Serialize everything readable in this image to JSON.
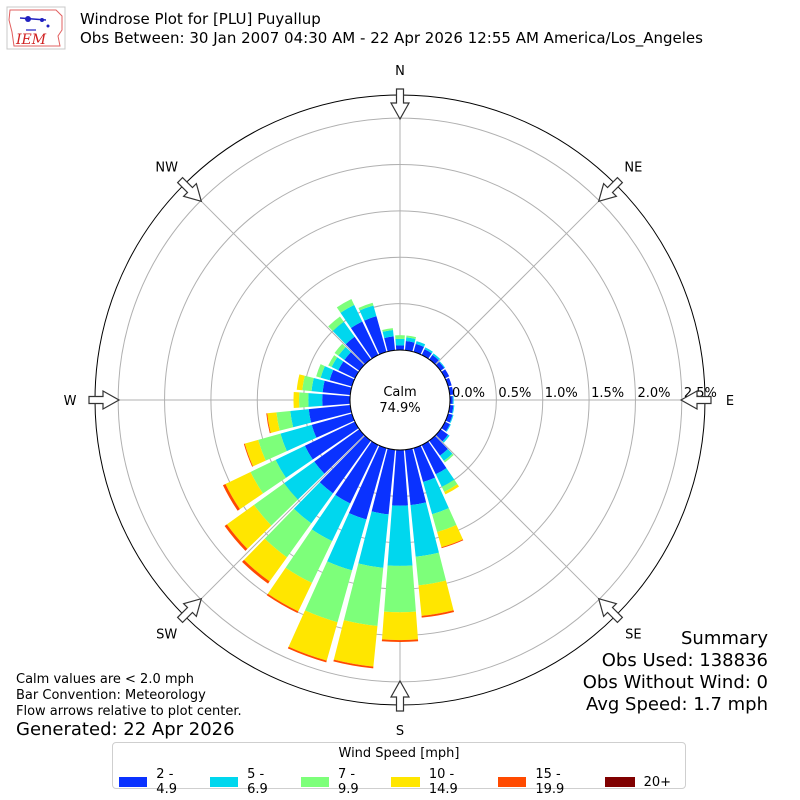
{
  "header": {
    "logo_text": "IEM",
    "title_line1": "Windrose Plot for [PLU] Puyallup",
    "title_line2": "Obs Between: 30 Jan 2007 04:30 AM - 22 Apr 2026 12:55 AM America/Los_Angeles"
  },
  "summary": {
    "title": "Summary",
    "obs_used": "Obs Used: 138836",
    "obs_without_wind": "Obs Without Wind: 0",
    "avg_speed": "Avg Speed: 1.7 mph"
  },
  "notes": {
    "line1": "Calm values are < 2.0 mph",
    "line2": "Bar Convention: Meteorology",
    "line3": "Flow arrows relative to plot center."
  },
  "generated": "Generated: 22 Apr 2026",
  "chart_data": {
    "type": "windrose",
    "calm_label": "Calm",
    "calm_value": "74.9%",
    "radial_ticks": [
      "0.0%",
      "0.5%",
      "1.0%",
      "1.5%",
      "2.0%",
      "2.5%"
    ],
    "rmax": 2.75,
    "directions": [
      "N",
      "NE",
      "E",
      "SE",
      "S",
      "SW",
      "W",
      "NW"
    ],
    "legend_title": "Wind Speed [mph]",
    "bins": [
      {
        "label": "2 - 4.9",
        "color": "#0a32ff"
      },
      {
        "label": "5 - 6.9",
        "color": "#00d7ee"
      },
      {
        "label": "7 - 9.9",
        "color": "#7dff7a"
      },
      {
        "label": "10 - 14.9",
        "color": "#ffe600"
      },
      {
        "label": "15 - 19.9",
        "color": "#ff4a00"
      },
      {
        "label": "20+",
        "color": "#800000"
      }
    ],
    "sectors": [
      {
        "dir": 0,
        "values": [
          0.05,
          0.07,
          0.04,
          0.0,
          0.0,
          0.0
        ]
      },
      {
        "dir": 10,
        "values": [
          0.1,
          0.04,
          0.02,
          0.0,
          0.0,
          0.0
        ]
      },
      {
        "dir": 20,
        "values": [
          0.09,
          0.03,
          0.0,
          0.0,
          0.0,
          0.0
        ]
      },
      {
        "dir": 30,
        "values": [
          0.07,
          0.02,
          0.0,
          0.0,
          0.0,
          0.0
        ]
      },
      {
        "dir": 40,
        "values": [
          0.06,
          0.02,
          0.0,
          0.0,
          0.0,
          0.0
        ]
      },
      {
        "dir": 50,
        "values": [
          0.05,
          0.01,
          0.0,
          0.0,
          0.0,
          0.0
        ]
      },
      {
        "dir": 60,
        "values": [
          0.05,
          0.0,
          0.0,
          0.0,
          0.0,
          0.0
        ]
      },
      {
        "dir": 70,
        "values": [
          0.04,
          0.0,
          0.0,
          0.0,
          0.0,
          0.0
        ]
      },
      {
        "dir": 80,
        "values": [
          0.04,
          0.0,
          0.0,
          0.0,
          0.0,
          0.0
        ]
      },
      {
        "dir": 90,
        "values": [
          0.03,
          0.01,
          0.0,
          0.0,
          0.0,
          0.0
        ]
      },
      {
        "dir": 100,
        "values": [
          0.04,
          0.01,
          0.0,
          0.0,
          0.0,
          0.0
        ]
      },
      {
        "dir": 110,
        "values": [
          0.05,
          0.01,
          0.0,
          0.0,
          0.0,
          0.0
        ]
      },
      {
        "dir": 120,
        "values": [
          0.06,
          0.01,
          0.0,
          0.0,
          0.0,
          0.0
        ]
      },
      {
        "dir": 130,
        "values": [
          0.1,
          0.02,
          0.0,
          0.0,
          0.0,
          0.0
        ]
      },
      {
        "dir": 140,
        "values": [
          0.2,
          0.07,
          0.02,
          0.0,
          0.0,
          0.0
        ]
      },
      {
        "dir": 150,
        "values": [
          0.35,
          0.15,
          0.06,
          0.03,
          0.0,
          0.0
        ]
      },
      {
        "dir": 160,
        "values": [
          0.38,
          0.36,
          0.2,
          0.17,
          0.01,
          0.0
        ]
      },
      {
        "dir": 170,
        "values": [
          0.6,
          0.56,
          0.31,
          0.33,
          0.02,
          0.0
        ]
      },
      {
        "dir": 180,
        "values": [
          0.6,
          0.65,
          0.5,
          0.3,
          0.02,
          0.0
        ]
      },
      {
        "dir": 190,
        "values": [
          0.7,
          0.58,
          0.63,
          0.44,
          0.02,
          0.0
        ]
      },
      {
        "dir": 200,
        "values": [
          0.8,
          0.57,
          0.58,
          0.43,
          0.02,
          0.0
        ]
      },
      {
        "dir": 210,
        "values": [
          0.7,
          0.45,
          0.5,
          0.34,
          0.02,
          0.0
        ]
      },
      {
        "dir": 220,
        "values": [
          0.7,
          0.4,
          0.45,
          0.32,
          0.03,
          0.0
        ]
      },
      {
        "dir": 230,
        "values": [
          0.6,
          0.4,
          0.4,
          0.36,
          0.03,
          0.0
        ]
      },
      {
        "dir": 240,
        "values": [
          0.6,
          0.35,
          0.3,
          0.3,
          0.03,
          0.0
        ]
      },
      {
        "dir": 250,
        "values": [
          0.45,
          0.35,
          0.25,
          0.15,
          0.01,
          0.0
        ]
      },
      {
        "dir": 260,
        "values": [
          0.45,
          0.2,
          0.15,
          0.1,
          0.01,
          0.0
        ]
      },
      {
        "dir": 270,
        "values": [
          0.3,
          0.15,
          0.1,
          0.06,
          0.0,
          0.0
        ]
      },
      {
        "dir": 280,
        "values": [
          0.3,
          0.12,
          0.1,
          0.06,
          0.0,
          0.0
        ]
      },
      {
        "dir": 290,
        "values": [
          0.25,
          0.1,
          0.05,
          0.0,
          0.0,
          0.0
        ]
      },
      {
        "dir": 300,
        "values": [
          0.2,
          0.08,
          0.04,
          0.0,
          0.0,
          0.0
        ]
      },
      {
        "dir": 310,
        "values": [
          0.2,
          0.08,
          0.05,
          0.0,
          0.0,
          0.0
        ]
      },
      {
        "dir": 320,
        "values": [
          0.3,
          0.2,
          0.07,
          0.0,
          0.0,
          0.0
        ]
      },
      {
        "dir": 330,
        "values": [
          0.4,
          0.2,
          0.07,
          0.0,
          0.0,
          0.0
        ]
      },
      {
        "dir": 340,
        "values": [
          0.4,
          0.12,
          0.03,
          0.0,
          0.0,
          0.0
        ]
      },
      {
        "dir": 350,
        "values": [
          0.15,
          0.07,
          0.02,
          0.0,
          0.0,
          0.0
        ]
      }
    ]
  }
}
